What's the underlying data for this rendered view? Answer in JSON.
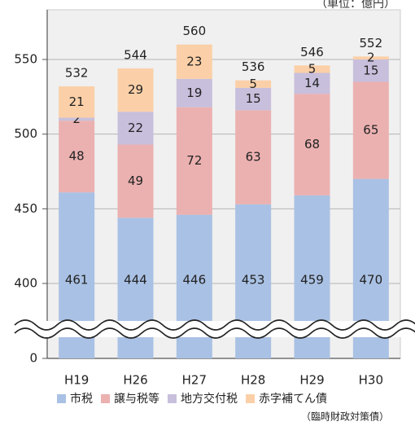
{
  "unit_label": "（単位：億円）",
  "chart_data": {
    "type": "bar",
    "stacked": true,
    "categories": [
      "H19",
      "H26",
      "H27",
      "H28",
      "H29",
      "H30"
    ],
    "series": [
      {
        "name": "市税",
        "values": [
          461,
          444,
          446,
          453,
          459,
          470
        ],
        "color": "#a9c1e4"
      },
      {
        "name": "譲与税等",
        "values": [
          48,
          49,
          72,
          63,
          68,
          65
        ],
        "color": "#ebb1b0"
      },
      {
        "name": "地方交付税",
        "values": [
          2,
          22,
          19,
          15,
          14,
          15
        ],
        "color": "#c8bfdc"
      },
      {
        "name": "赤字補てん債",
        "values": [
          21,
          29,
          23,
          5,
          5,
          2
        ],
        "color": "#fbd0a8"
      }
    ],
    "totals": [
      532,
      544,
      560,
      536,
      546,
      552
    ],
    "y_ticks": [
      0,
      400,
      450,
      500,
      550
    ],
    "ylim": [
      380,
      570
    ],
    "axis_break": true,
    "grid": true,
    "legend_position": "bottom",
    "legend_note": "（臨時財政対策債）"
  }
}
